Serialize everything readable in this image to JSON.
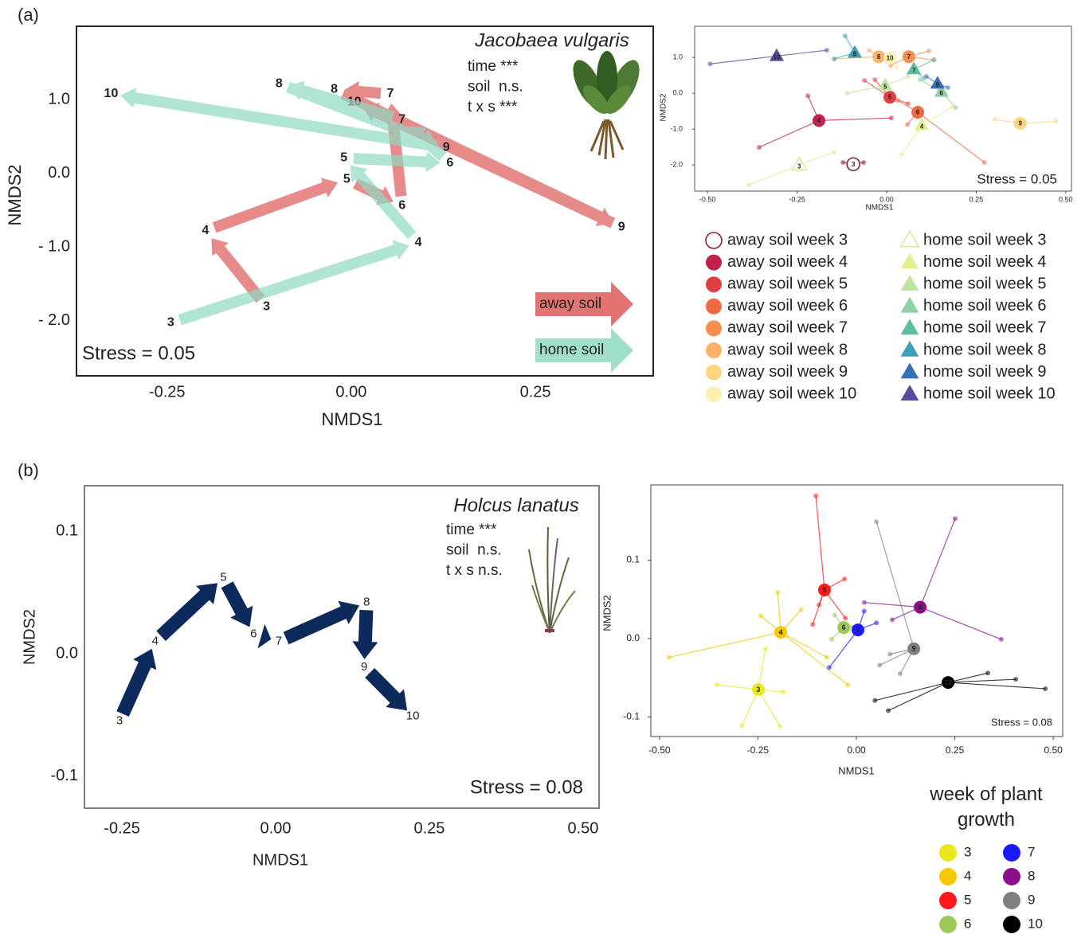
{
  "chart_data": [
    {
      "type": "arrow",
      "panel_label": "(a)",
      "title": "Jacobaea vulgaris",
      "annotations": [
        "time ***",
        "soil  n.s.",
        "t x s ***"
      ],
      "stress": "Stress = 0.05",
      "x_label": "NMDS1",
      "y_label": "NMDS2",
      "xlim": [
        -0.373,
        0.41
      ],
      "ylim": [
        -2.75,
        2.0
      ],
      "xticks": [
        -0.25,
        {
          "value": 0,
          "label": "0.00"
        },
        0.25
      ],
      "yticks": [
        {
          "value": 1,
          "label": "1.0"
        },
        {
          "value": 0,
          "label": "0.0"
        },
        {
          "value": -1,
          "label": "- 1.0"
        },
        {
          "value": -2,
          "label": "- 2.0"
        }
      ],
      "legend": true,
      "series": [
        {
          "name": "away soil",
          "color": "#dd5a5a",
          "label_color": "#a0102a",
          "labels": [
            "3",
            "4",
            "5",
            "6",
            "7",
            "8",
            "9",
            "10"
          ],
          "x": [
            -0.115,
            -0.198,
            -0.006,
            0.069,
            0.053,
            -0.023,
            0.367,
            0.004
          ],
          "values": [
            -1.81,
            -0.78,
            -0.08,
            -0.44,
            1.08,
            1.14,
            -0.73,
            0.97
          ]
        },
        {
          "name": "home soil",
          "color": "#8fd9c2",
          "label_color": "#66c6aa",
          "labels": [
            "3",
            "4",
            "5",
            "6",
            "7",
            "8",
            "9",
            "10"
          ],
          "x": [
            -0.245,
            0.091,
            -0.01,
            0.134,
            0.069,
            -0.098,
            0.129,
            -0.326
          ],
          "values": [
            -2.03,
            -0.94,
            0.21,
            0.14,
            0.73,
            1.22,
            0.35,
            1.08
          ]
        }
      ]
    },
    {
      "type": "scatter",
      "stress": "Stress = 0.05",
      "x_label": "NMDS1",
      "y_label": "NMDS2",
      "xlim": [
        -0.536,
        0.516
      ],
      "ylim": [
        -2.73,
        1.87
      ],
      "xticks": [
        {
          "value": -0.5,
          "label": "-0.50"
        },
        -0.25,
        {
          "value": 0,
          "label": "0.00"
        },
        0.25,
        {
          "value": 0.5,
          "label": "0.50"
        }
      ],
      "yticks": [
        {
          "value": 1,
          "label": "1.0"
        },
        {
          "value": 0,
          "label": "0.0"
        },
        {
          "value": -1,
          "label": "-1.0"
        },
        {
          "value": -2,
          "label": "-2.0"
        }
      ],
      "series": [
        {
          "name": "away soil week 3",
          "label": "3",
          "marker": "circle",
          "filled": false,
          "color": "#8b1a4a",
          "centroid_x": -0.093,
          "centroid_y": -1.98,
          "points_x": [
            -0.122,
            -0.064
          ],
          "points_y": [
            -1.93,
            -1.93
          ]
        },
        {
          "name": "away soil week 4",
          "label": "4",
          "marker": "circle",
          "filled": true,
          "color": "#c0224c",
          "centroid_x": -0.189,
          "centroid_y": -0.76,
          "points_x": [
            -0.356,
            -0.22,
            0.013
          ],
          "points_y": [
            -1.51,
            -0.07,
            -0.69
          ]
        },
        {
          "name": "away soil week 5",
          "label": "5",
          "marker": "circle",
          "filled": true,
          "color": "#de3f43",
          "centroid_x": 0.009,
          "centroid_y": -0.11,
          "points_x": [
            -0.062,
            -0.033,
            0.06
          ],
          "points_y": [
            0.36,
            0.38,
            -0.29
          ]
        },
        {
          "name": "away soil week 6",
          "label": "6",
          "marker": "circle",
          "filled": true,
          "color": "#ee6b45",
          "centroid_x": 0.087,
          "centroid_y": -0.53,
          "points_x": [
            0.273,
            0.031,
            0.058
          ],
          "points_y": [
            -1.93,
            -0.2,
            -0.87
          ]
        },
        {
          "name": "away soil week 7",
          "label": "7",
          "marker": "circle",
          "filled": true,
          "color": "#f78f51",
          "centroid_x": 0.062,
          "centroid_y": 1.02,
          "points_x": [
            0.118,
            0.133,
            0.011
          ],
          "points_y": [
            1.18,
            0.93,
            0.78
          ]
        },
        {
          "name": "away soil week 8",
          "label": "8",
          "marker": "circle",
          "filled": true,
          "color": "#fbb166",
          "centroid_x": -0.022,
          "centroid_y": 1.02,
          "points_x": [
            -0.144,
            -0.049
          ],
          "points_y": [
            0.96,
            1.2
          ]
        },
        {
          "name": "away soil week 9",
          "label": "9",
          "marker": "circle",
          "filled": true,
          "color": "#fcd581",
          "centroid_x": 0.373,
          "centroid_y": -0.84,
          "points_x": [
            0.302,
            0.473
          ],
          "points_y": [
            -0.73,
            -0.78
          ]
        },
        {
          "name": "away soil week 10",
          "label": "10",
          "marker": "circle",
          "filled": true,
          "color": "#fcefb0",
          "centroid_x": 0.009,
          "centroid_y": 0.98,
          "points_x": [
            0.049,
            0.027
          ],
          "points_y": [
            1.16,
            0.71
          ]
        },
        {
          "name": "home soil week 3",
          "label": "3",
          "marker": "triangle",
          "filled": false,
          "color": "#e6e69a",
          "centroid_x": -0.244,
          "centroid_y": -2.0,
          "points_x": [
            -0.384,
            -0.147
          ],
          "points_y": [
            -2.56,
            -1.64
          ]
        },
        {
          "name": "home soil week 4",
          "label": "4",
          "marker": "triangle",
          "filled": true,
          "color": "#e6ef8e",
          "centroid_x": 0.098,
          "centroid_y": -0.89,
          "points_x": [
            0.042,
            0.184
          ],
          "points_y": [
            -1.71,
            -0.38
          ]
        },
        {
          "name": "home soil week 5",
          "label": "5",
          "marker": "triangle",
          "filled": true,
          "color": "#c0e3a0",
          "centroid_x": -0.004,
          "centroid_y": 0.22,
          "points_x": [
            -0.111,
            0.06
          ],
          "points_y": [
            0,
            0.47
          ]
        },
        {
          "name": "home soil week 6",
          "label": "6",
          "marker": "triangle",
          "filled": true,
          "color": "#8fd1a2",
          "centroid_x": 0.153,
          "centroid_y": 0.04,
          "points_x": [
            0.193,
            0.093
          ],
          "points_y": [
            -0.4,
            0.38
          ]
        },
        {
          "name": "home soil week 7",
          "label": "7",
          "marker": "triangle",
          "filled": true,
          "color": "#5cbea0",
          "centroid_x": 0.076,
          "centroid_y": 0.67,
          "points_x": [
            0.131,
            0.104
          ],
          "points_y": [
            0.93,
            0.42
          ]
        },
        {
          "name": "home soil week 8",
          "label": "8",
          "marker": "triangle",
          "filled": true,
          "color": "#3c9fb7",
          "centroid_x": -0.089,
          "centroid_y": 1.13,
          "points_x": [
            -0.147,
            -0.116
          ],
          "points_y": [
            0.96,
            1.6
          ]
        },
        {
          "name": "home soil week 9",
          "label": "9",
          "marker": "triangle",
          "filled": true,
          "color": "#3870b5",
          "centroid_x": 0.142,
          "centroid_y": 0.27,
          "points_x": [
            0.111,
            0.171
          ],
          "points_y": [
            0.47,
            0.16
          ]
        },
        {
          "name": "home soil week 10",
          "label": "10",
          "marker": "triangle",
          "filled": true,
          "color": "#5b4a9c",
          "centroid_x": -0.307,
          "centroid_y": 1.04,
          "points_x": [
            -0.493,
            -0.167
          ],
          "points_y": [
            0.82,
            1.2
          ]
        }
      ]
    },
    {
      "type": "arrow",
      "panel_label": "(b)",
      "title": "Holcus lanatus",
      "annotations": [
        "time ***",
        "soil  n.s.",
        "t x s n.s."
      ],
      "stress": "Stress = 0.08",
      "x_label": "NMDS1",
      "y_label": "NMDS2",
      "xlim": [
        -0.311,
        0.526
      ],
      "ylim": [
        -0.126,
        0.137
      ],
      "xticks": [
        -0.25,
        {
          "value": 0,
          "label": "0.00"
        },
        0.25,
        {
          "value": 0.5,
          "label": "0.50"
        }
      ],
      "yticks": [
        0.1,
        {
          "value": 0,
          "label": "0.0"
        },
        -0.1
      ],
      "legend": false,
      "series": [
        {
          "color": "#0d2a5c",
          "label_color": "#1f3a6e",
          "labels": [
            "3",
            "4",
            "5",
            "6",
            "7",
            "8",
            "9",
            "10"
          ],
          "x": [
            -0.254,
            -0.196,
            -0.085,
            -0.036,
            0.005,
            0.148,
            0.144,
            0.223
          ],
          "values": [
            -0.055,
            0.01,
            0.062,
            0.016,
            0.01,
            0.042,
            -0.011,
            -0.051
          ]
        }
      ]
    },
    {
      "type": "scatter",
      "stress": "Stress = 0.08",
      "x_label": "NMDS1",
      "y_label": "NMDS2",
      "legend_title": "week of plant growth",
      "xlim": [
        -0.522,
        0.524
      ],
      "ylim": [
        -0.125,
        0.196
      ],
      "xticks": [
        {
          "value": -0.5,
          "label": "-0.50"
        },
        -0.25,
        {
          "value": 0,
          "label": "0.00"
        },
        0.25,
        {
          "value": 0.5,
          "label": "0.50"
        }
      ],
      "yticks": [
        0.1,
        {
          "value": 0,
          "label": "0.0"
        },
        -0.1
      ],
      "series": [
        {
          "name": "3",
          "marker": "circle",
          "filled": true,
          "color": "#e8e81a",
          "centroid_x": -0.249,
          "centroid_y": -0.065,
          "points_x": [
            -0.354,
            -0.291,
            -0.194,
            -0.186,
            -0.231
          ],
          "points_y": [
            -0.059,
            -0.111,
            -0.112,
            -0.068,
            -0.013
          ]
        },
        {
          "name": "4",
          "marker": "circle",
          "filled": true,
          "color": "#f5c800",
          "centroid_x": -0.192,
          "centroid_y": 0.008,
          "points_x": [
            -0.476,
            -0.243,
            -0.2,
            -0.022,
            -0.14,
            -0.075
          ],
          "points_y": [
            -0.024,
            0.029,
            0.059,
            -0.059,
            0.037,
            -0.024
          ]
        },
        {
          "name": "5",
          "marker": "circle",
          "filled": true,
          "color": "#ff1a1a",
          "centroid_x": -0.081,
          "centroid_y": 0.062,
          "points_x": [
            -0.103,
            -0.03,
            -0.111,
            -0.028,
            -0.095
          ],
          "points_y": [
            0.182,
            0.076,
            0.018,
            0.026,
            0.043
          ]
        },
        {
          "name": "6",
          "marker": "circle",
          "filled": true,
          "color": "#9dc95a",
          "centroid_x": -0.032,
          "centroid_y": 0.014,
          "points_x": [
            -0.063,
            -0.055,
            -0.01
          ],
          "points_y": [
            -0.001,
            0.03,
            0.015
          ]
        },
        {
          "name": "7",
          "marker": "circle",
          "filled": true,
          "color": "#1a1aff",
          "centroid_x": 0.004,
          "centroid_y": 0.011,
          "points_x": [
            -0.069,
            0.02,
            0.051
          ],
          "points_y": [
            -0.037,
            0.035,
            0.02
          ]
        },
        {
          "name": "8",
          "marker": "circle",
          "filled": true,
          "color": "#8b0f8b",
          "centroid_x": 0.162,
          "centroid_y": 0.04,
          "points_x": [
            0.251,
            0.368,
            0.02,
            0.091
          ],
          "points_y": [
            0.153,
            -0.001,
            0.046,
            0.024
          ]
        },
        {
          "name": "9",
          "marker": "circle",
          "filled": true,
          "color": "#808080",
          "centroid_x": 0.146,
          "centroid_y": -0.013,
          "points_x": [
            0.051,
            0.059,
            0.111,
            0.085
          ],
          "points_y": [
            0.149,
            -0.034,
            -0.045,
            -0.02
          ]
        },
        {
          "name": "10",
          "marker": "circle",
          "filled": true,
          "color": "#000000",
          "centroid_x": 0.233,
          "centroid_y": -0.056,
          "points_x": [
            0.047,
            0.081,
            0.334,
            0.405,
            0.48
          ],
          "points_y": [
            -0.079,
            -0.092,
            -0.044,
            -0.052,
            -0.064
          ]
        }
      ]
    }
  ]
}
